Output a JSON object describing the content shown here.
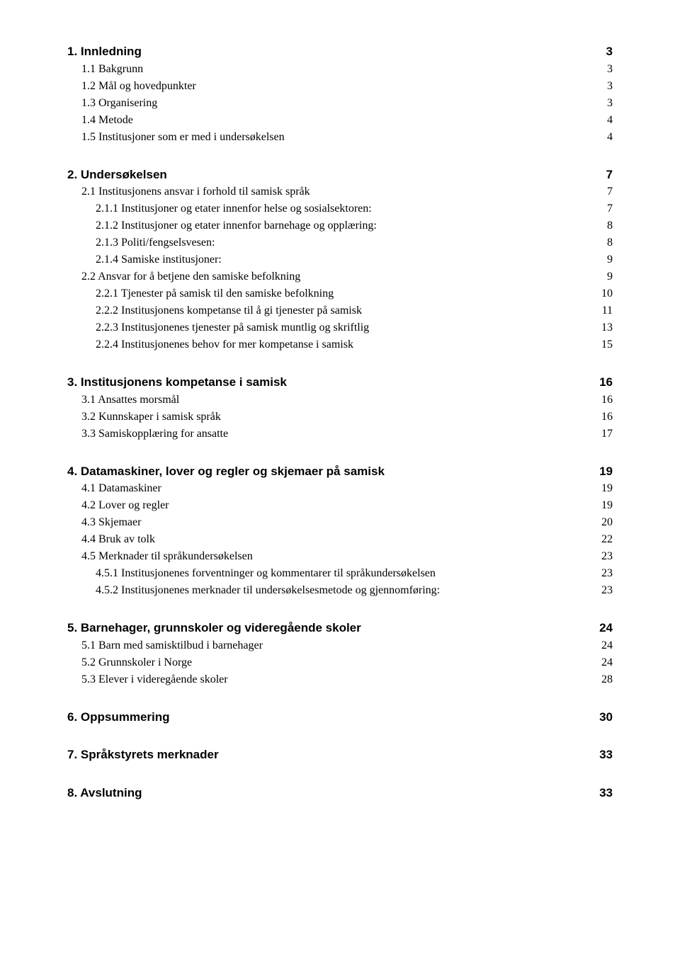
{
  "toc": [
    {
      "heading": {
        "label": "1. Innledning",
        "page": "3"
      },
      "children": [
        {
          "level": 2,
          "label": "1.1 Bakgrunn",
          "page": "3"
        },
        {
          "level": 2,
          "label": "1.2 Mål og hovedpunkter",
          "page": "3"
        },
        {
          "level": 2,
          "label": "1.3 Organisering",
          "page": "3"
        },
        {
          "level": 2,
          "label": "1.4 Metode",
          "page": "4"
        },
        {
          "level": 2,
          "label": "1.5 Institusjoner som er med i undersøkelsen",
          "page": "4"
        }
      ]
    },
    {
      "heading": {
        "label": "2. Undersøkelsen",
        "page": "7"
      },
      "children": [
        {
          "level": 2,
          "label": "2.1 Institusjonens ansvar i forhold til samisk språk",
          "page": "7"
        },
        {
          "level": 3,
          "label": "2.1.1 Institusjoner og etater innenfor helse og sosialsektoren:",
          "page": "7"
        },
        {
          "level": 3,
          "label": "2.1.2 Institusjoner og etater innenfor barnehage og opplæring:",
          "page": "8"
        },
        {
          "level": 3,
          "label": "2.1.3 Politi/fengselsvesen:",
          "page": "8"
        },
        {
          "level": 3,
          "label": "2.1.4 Samiske institusjoner:",
          "page": "9"
        },
        {
          "level": 2,
          "label": "2.2 Ansvar for å betjene den samiske befolkning",
          "page": "9"
        },
        {
          "level": 3,
          "label": "2.2.1 Tjenester på samisk til den samiske befolkning",
          "page": "10"
        },
        {
          "level": 3,
          "label": "2.2.2 Institusjonens kompetanse til å gi tjenester på samisk",
          "page": "11"
        },
        {
          "level": 3,
          "label": "2.2.3 Institusjonenes tjenester på samisk muntlig og skriftlig",
          "page": "13"
        },
        {
          "level": 3,
          "label": "2.2.4 Institusjonenes behov for mer kompetanse i samisk",
          "page": "15"
        }
      ]
    },
    {
      "heading": {
        "label": "3. Institusjonens kompetanse i samisk",
        "page": "16"
      },
      "children": [
        {
          "level": 2,
          "label": "3.1 Ansattes morsmål",
          "page": "16"
        },
        {
          "level": 2,
          "label": "3.2 Kunnskaper i samisk språk",
          "page": "16"
        },
        {
          "level": 2,
          "label": "3.3 Samiskopplæring for ansatte",
          "page": "17"
        }
      ]
    },
    {
      "heading": {
        "label": "4. Datamaskiner, lover og regler og skjemaer på samisk",
        "page": "19"
      },
      "children": [
        {
          "level": 2,
          "label": "4.1 Datamaskiner",
          "page": "19"
        },
        {
          "level": 2,
          "label": "4.2 Lover og regler",
          "page": "19"
        },
        {
          "level": 2,
          "label": "4.3 Skjemaer",
          "page": "20"
        },
        {
          "level": 2,
          "label": "4.4 Bruk av tolk",
          "page": "22"
        },
        {
          "level": 2,
          "label": "4.5 Merknader til språkundersøkelsen",
          "page": "23"
        },
        {
          "level": 3,
          "label": "4.5.1 Institusjonenes forventninger og kommentarer til språkundersøkelsen",
          "page": "23"
        },
        {
          "level": 3,
          "label": "4.5.2 Institusjonenes merknader til undersøkelsesmetode og gjennomføring:",
          "page": "23"
        }
      ]
    },
    {
      "heading": {
        "label": "5. Barnehager, grunnskoler og videregående skoler",
        "page": "24"
      },
      "children": [
        {
          "level": 2,
          "label": "5.1 Barn med samisktilbud i barnehager",
          "page": "24"
        },
        {
          "level": 2,
          "label": "5.2 Grunnskoler i Norge",
          "page": "24"
        },
        {
          "level": 2,
          "label": "5.3 Elever i videregående skoler",
          "page": "28"
        }
      ]
    },
    {
      "heading": {
        "label": "6. Oppsummering",
        "page": "30"
      },
      "children": []
    },
    {
      "heading": {
        "label": "7. Språkstyrets merknader",
        "page": "33"
      },
      "children": []
    },
    {
      "heading": {
        "label": "8. Avslutning",
        "page": "33"
      },
      "children": []
    }
  ]
}
